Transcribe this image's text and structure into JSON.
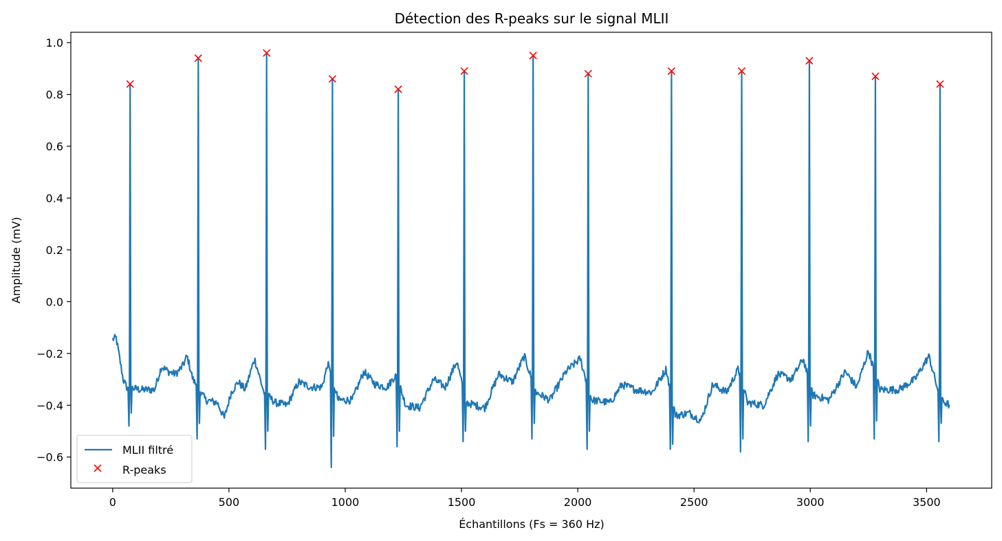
{
  "chart_data": {
    "type": "line",
    "title": "Détection des R-peaks sur le signal MLII",
    "xlabel": "Échantillons (Fs = 360 Hz)",
    "ylabel": "Amplitude (mV)",
    "xlim": [
      -180,
      3780
    ],
    "ylim": [
      -0.72,
      1.04
    ],
    "xticks": [
      0,
      500,
      1000,
      1500,
      2000,
      2500,
      3000,
      3500
    ],
    "xtick_labels": [
      "0",
      "500",
      "1000",
      "1500",
      "2000",
      "2500",
      "3000",
      "3500"
    ],
    "yticks": [
      -0.6,
      -0.4,
      -0.2,
      0.0,
      0.2,
      0.4,
      0.6,
      0.8,
      1.0
    ],
    "ytick_labels": [
      "−0.6",
      "−0.4",
      "−0.2",
      "0.0",
      "0.2",
      "0.4",
      "0.6",
      "0.8",
      "1.0"
    ],
    "grid": false,
    "legend": {
      "position": "lower-left",
      "entries": [
        {
          "label": "MLII filtré",
          "marker": "line",
          "color": "#1f77b4"
        },
        {
          "label": "R-peaks",
          "marker": "x",
          "color": "#ff0000"
        }
      ]
    },
    "series": [
      {
        "name": "MLII filtré",
        "color": "#1f77b4",
        "baseline": [
          [
            0,
            -0.145
          ],
          [
            15,
            -0.14
          ],
          [
            30,
            -0.22
          ],
          [
            45,
            -0.3
          ],
          [
            60,
            -0.33
          ],
          [
            120,
            -0.34
          ],
          [
            180,
            -0.34
          ],
          [
            210,
            -0.25
          ],
          [
            240,
            -0.27
          ],
          [
            270,
            -0.28
          ],
          [
            300,
            -0.25
          ],
          [
            320,
            -0.21
          ],
          [
            345,
            -0.3
          ],
          [
            400,
            -0.38
          ],
          [
            450,
            -0.39
          ],
          [
            480,
            -0.45
          ],
          [
            510,
            -0.35
          ],
          [
            540,
            -0.31
          ],
          [
            570,
            -0.34
          ],
          [
            610,
            -0.22
          ],
          [
            650,
            -0.35
          ],
          [
            700,
            -0.39
          ],
          [
            750,
            -0.4
          ],
          [
            800,
            -0.31
          ],
          [
            850,
            -0.33
          ],
          [
            900,
            -0.33
          ],
          [
            925,
            -0.24
          ],
          [
            970,
            -0.38
          ],
          [
            1030,
            -0.38
          ],
          [
            1080,
            -0.27
          ],
          [
            1130,
            -0.32
          ],
          [
            1180,
            -0.33
          ],
          [
            1220,
            -0.28
          ],
          [
            1260,
            -0.4
          ],
          [
            1320,
            -0.41
          ],
          [
            1380,
            -0.3
          ],
          [
            1430,
            -0.33
          ],
          [
            1480,
            -0.23
          ],
          [
            1520,
            -0.39
          ],
          [
            1600,
            -0.41
          ],
          [
            1660,
            -0.28
          ],
          [
            1720,
            -0.31
          ],
          [
            1770,
            -0.21
          ],
          [
            1820,
            -0.35
          ],
          [
            1880,
            -0.38
          ],
          [
            1950,
            -0.27
          ],
          [
            2010,
            -0.22
          ],
          [
            2060,
            -0.38
          ],
          [
            2140,
            -0.39
          ],
          [
            2190,
            -0.32
          ],
          [
            2250,
            -0.34
          ],
          [
            2320,
            -0.35
          ],
          [
            2380,
            -0.26
          ],
          [
            2420,
            -0.44
          ],
          [
            2480,
            -0.43
          ],
          [
            2530,
            -0.46
          ],
          [
            2580,
            -0.32
          ],
          [
            2640,
            -0.35
          ],
          [
            2690,
            -0.26
          ],
          [
            2730,
            -0.39
          ],
          [
            2800,
            -0.4
          ],
          [
            2860,
            -0.28
          ],
          [
            2920,
            -0.3
          ],
          [
            2970,
            -0.22
          ],
          [
            3010,
            -0.36
          ],
          [
            3080,
            -0.38
          ],
          [
            3150,
            -0.27
          ],
          [
            3200,
            -0.33
          ],
          [
            3250,
            -0.19
          ],
          [
            3300,
            -0.34
          ],
          [
            3380,
            -0.34
          ],
          [
            3450,
            -0.3
          ],
          [
            3510,
            -0.21
          ],
          [
            3560,
            -0.38
          ],
          [
            3600,
            -0.4
          ]
        ],
        "qrs": [
          {
            "x": 75,
            "q": -0.48,
            "r": 0.84,
            "s": -0.43
          },
          {
            "x": 368,
            "q": -0.53,
            "r": 0.94,
            "s": -0.47
          },
          {
            "x": 662,
            "q": -0.57,
            "r": 0.96,
            "s": -0.5
          },
          {
            "x": 945,
            "q": -0.64,
            "r": 0.86,
            "s": -0.52
          },
          {
            "x": 1228,
            "q": -0.56,
            "r": 0.82,
            "s": -0.5
          },
          {
            "x": 1512,
            "q": -0.54,
            "r": 0.89,
            "s": -0.5
          },
          {
            "x": 1808,
            "q": -0.53,
            "r": 0.95,
            "s": -0.47
          },
          {
            "x": 2045,
            "q": -0.57,
            "r": 0.88,
            "s": -0.5
          },
          {
            "x": 2403,
            "q": -0.57,
            "r": 0.89,
            "s": -0.55
          },
          {
            "x": 2705,
            "q": -0.58,
            "r": 0.89,
            "s": -0.53
          },
          {
            "x": 2996,
            "q": -0.54,
            "r": 0.93,
            "s": -0.48
          },
          {
            "x": 3280,
            "q": -0.53,
            "r": 0.87,
            "s": -0.46
          },
          {
            "x": 3558,
            "q": -0.54,
            "r": 0.84,
            "s": -0.47
          }
        ]
      },
      {
        "name": "R-peaks",
        "color": "#ff0000",
        "points": [
          [
            75,
            0.84
          ],
          [
            368,
            0.94
          ],
          [
            662,
            0.96
          ],
          [
            945,
            0.86
          ],
          [
            1228,
            0.82
          ],
          [
            1512,
            0.89
          ],
          [
            1808,
            0.95
          ],
          [
            2045,
            0.88
          ],
          [
            2403,
            0.89
          ],
          [
            2705,
            0.89
          ],
          [
            2996,
            0.93
          ],
          [
            3280,
            0.87
          ],
          [
            3558,
            0.84
          ]
        ]
      }
    ]
  }
}
